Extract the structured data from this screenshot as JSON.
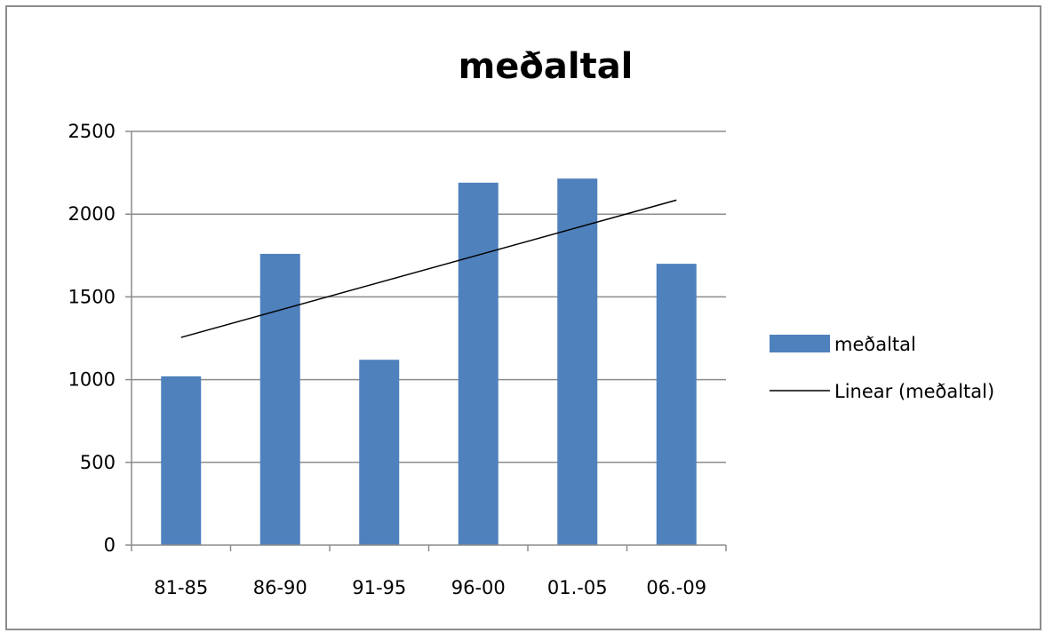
{
  "chart_data": {
    "type": "bar",
    "title": "meðaltal",
    "xlabel": "",
    "ylabel": "",
    "categories": [
      "81-85",
      "86-90",
      "91-95",
      "96-00",
      "01.-05",
      "06.-09"
    ],
    "series": [
      {
        "name": "meðaltal",
        "values": [
          1020,
          1760,
          1120,
          2190,
          2215,
          1700
        ],
        "color": "#4f81bd"
      }
    ],
    "trendline": {
      "name": "Linear (meðaltal)",
      "type": "linear",
      "start": 1255,
      "end": 2085,
      "color": "#000000"
    },
    "ylim": [
      0,
      2500
    ],
    "yticks": [
      0,
      500,
      1000,
      1500,
      2000,
      2500
    ],
    "grid": true,
    "legend_position": "right"
  }
}
